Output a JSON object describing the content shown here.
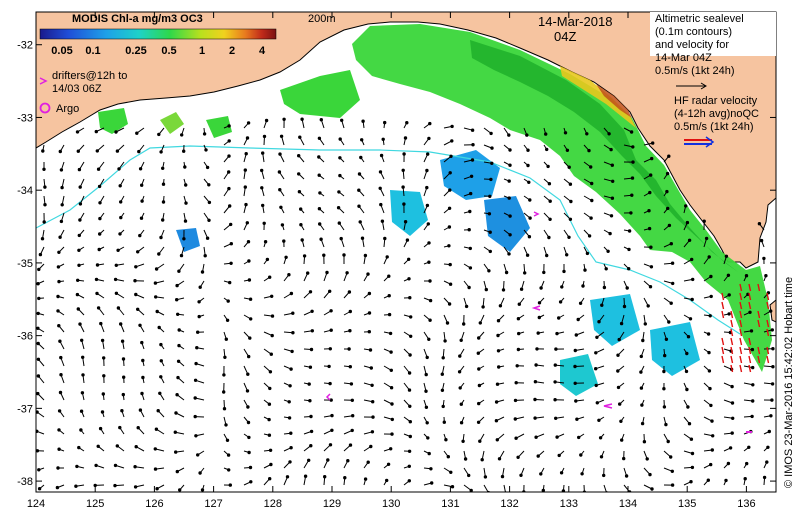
{
  "colorbar": {
    "title": "MODIS Chl-a mg/m3 OC3",
    "tick_labels": [
      "0.05",
      "0.1",
      "0.25",
      "0.5",
      "1",
      "2",
      "4"
    ],
    "colors": [
      "#1a1a8c",
      "#1f4ed8",
      "#1ea0e8",
      "#1ed2c8",
      "#2ed84a",
      "#b8e01e",
      "#f0d21e",
      "#e87a1e",
      "#c02a1a",
      "#7a1212"
    ]
  },
  "depth_label": "200m",
  "date": "14-Mar-2018",
  "time": "04Z",
  "legend": {
    "drifters_line1": "drifters@12h to",
    "drifters_line2": "14/03 06Z",
    "argo": "Argo",
    "altimetry_lines": [
      "Altimetric sealevel",
      "(0.1m contours)",
      "and velocity for",
      "14-Mar 04Z",
      "0.5m/s (1kt 24h)"
    ],
    "hf_lines": [
      "HF radar velocity",
      "(4-12h avg)noQC",
      "0.5m/s (1kt 24h)"
    ]
  },
  "axes": {
    "lon_ticks": [
      "124",
      "125",
      "126",
      "127",
      "128",
      "129",
      "130",
      "131",
      "132",
      "133",
      "134",
      "135",
      "136"
    ],
    "lat_ticks": [
      "-32",
      "-33",
      "-34",
      "-35",
      "-36",
      "-37",
      "-38"
    ],
    "lon_range": [
      124,
      136.5
    ],
    "lat_range": [
      -38.15,
      -31.55
    ]
  },
  "side_label": "© IMOS 23-Mar-2016 15:42:02 Hobart time",
  "colors": {
    "land": "#f6c4a0",
    "drifter": "#e020e0",
    "isobath": "#40d8e0",
    "hf_arrow": "#e01010",
    "hf_legend_red": "#e01010",
    "hf_legend_blue": "#1030e0"
  }
}
